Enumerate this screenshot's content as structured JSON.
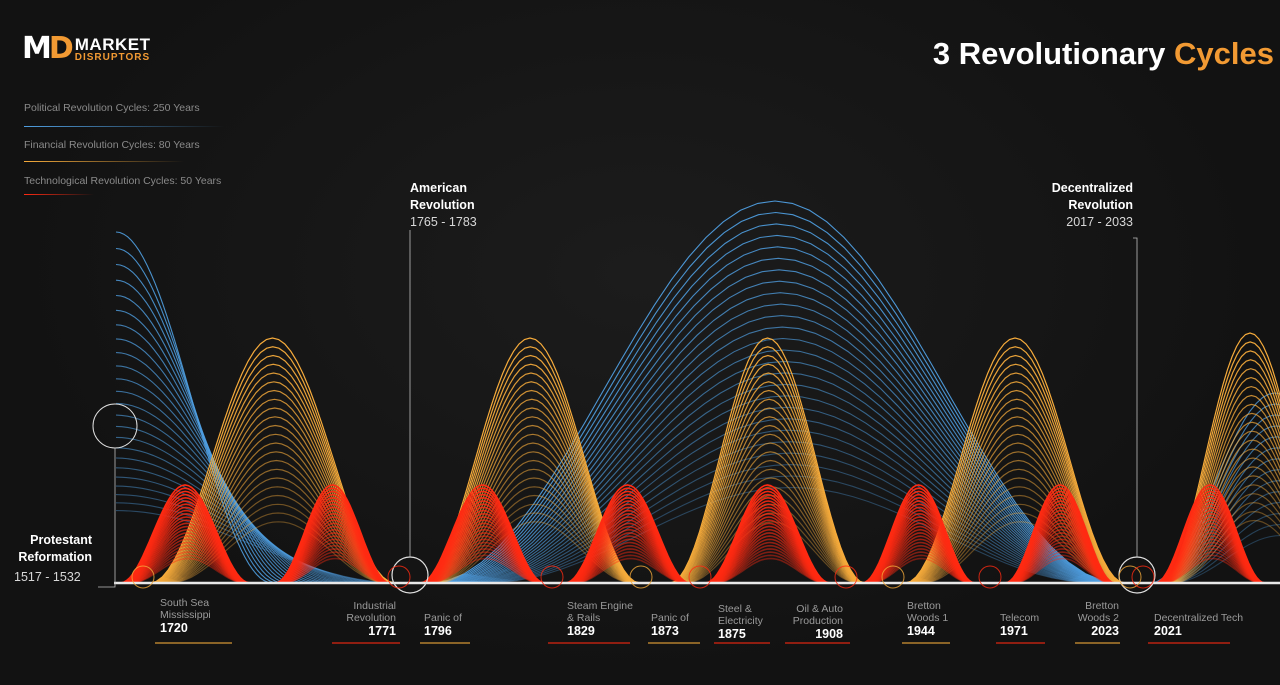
{
  "logo": {
    "mark_left": "M",
    "mark_right": "D",
    "line1": "MARKET",
    "line2": "DISRUPTORS"
  },
  "header": {
    "title_plain": "3 Revolutionary",
    "title_highlight": "Cycles"
  },
  "colors": {
    "political": "#4f9ee0",
    "financial": "#f6ab3b",
    "technological": "#ff2a12",
    "axis": "#e8e8e8"
  },
  "legend": [
    {
      "label": "Political Revolution Cycles: 250 Years",
      "color": "#4f9ee0"
    },
    {
      "label": "Financial Revolution Cycles: 80 Years",
      "color": "#f6ab3b"
    },
    {
      "label": "Technological Revolution Cycles: 50 Years",
      "color": "#ff2a12"
    }
  ],
  "annotations": {
    "protestant": {
      "title1": "Protestant",
      "title2": "Reformation",
      "years": "1517 - 1532"
    },
    "american": {
      "title1": "American",
      "title2": "Revolution",
      "years": "1765 - 1783"
    },
    "decentralized": {
      "title1": "Decentralized",
      "title2": "Revolution",
      "years": "2017 - 2033"
    }
  },
  "events": [
    {
      "l1": "South Sea",
      "l2": "Mississippi",
      "year": "1720"
    },
    {
      "l1": "Industrial",
      "l2": "Revolution",
      "year": "1771"
    },
    {
      "l1": "Panic of",
      "l2": "",
      "year": "1796"
    },
    {
      "l1": "Steam Engine",
      "l2": "& Rails",
      "year": "1829"
    },
    {
      "l1": "Panic of",
      "l2": "",
      "year": "1873"
    },
    {
      "l1": "Steel &",
      "l2": "Electricity",
      "year": "1875"
    },
    {
      "l1": "Oil & Auto",
      "l2": "Production",
      "year": "1908"
    },
    {
      "l1": "Bretton",
      "l2": "Woods 1",
      "year": "1944"
    },
    {
      "l1": "Telecom",
      "l2": "",
      "year": "1971"
    },
    {
      "l1": "Bretton",
      "l2": "Woods 2",
      "year": "2023"
    },
    {
      "l1": "Decentralized Tech",
      "l2": "",
      "year": "2021"
    }
  ],
  "chart_data": {
    "type": "area",
    "title": "3 Revolutionary Cycles",
    "series": [
      {
        "name": "Political Revolution Cycles: 250 Years",
        "period_years": 250,
        "troughs": [
          1525,
          1774,
          2025
        ]
      },
      {
        "name": "Financial Revolution Cycles: 80 Years",
        "period_years": 80
      },
      {
        "name": "Technological Revolution Cycles: 50 Years",
        "period_years": 50
      }
    ],
    "milestones": [
      "1720",
      "1771",
      "1796",
      "1829",
      "1873",
      "1875",
      "1908",
      "1944",
      "1971",
      "2023",
      "2021"
    ]
  }
}
